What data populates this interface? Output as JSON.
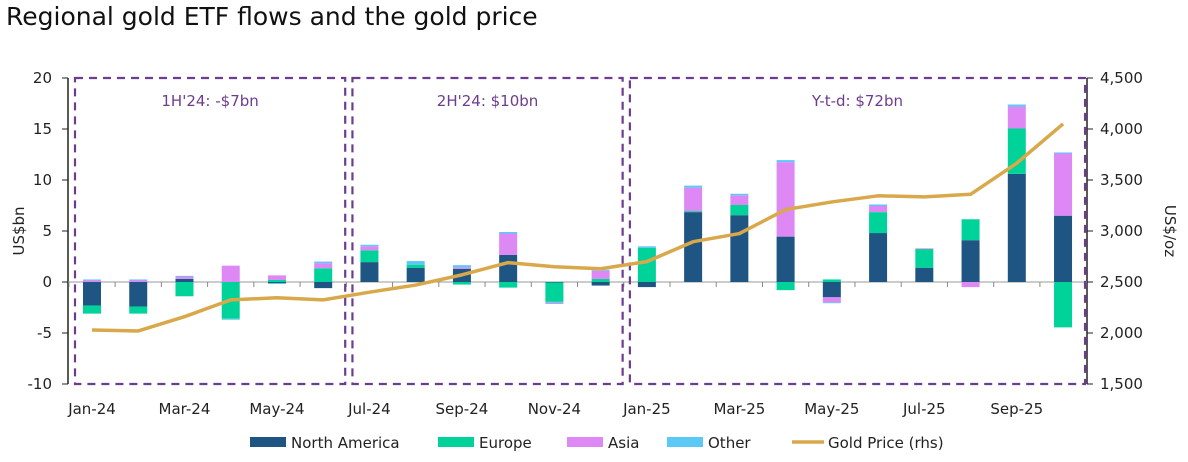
{
  "chart_data": {
    "type": "bar",
    "title": "Regional gold ETF flows and the gold price",
    "ylabel": "US$bn",
    "y2label": "US$/oz",
    "ylim": [
      -10,
      20
    ],
    "y2lim": [
      1500,
      4500
    ],
    "yticks": [
      -10,
      -5,
      0,
      5,
      10,
      15,
      20
    ],
    "y2ticks": [
      "1,500",
      "2,000",
      "2,500",
      "3,000",
      "3,500",
      "4,000",
      "4,500"
    ],
    "grid": false,
    "legend_position": "bottom",
    "categories": [
      "Jan-24",
      "Feb-24",
      "Mar-24",
      "Apr-24",
      "May-24",
      "Jun-24",
      "Jul-24",
      "Aug-24",
      "Sep-24",
      "Oct-24",
      "Nov-24",
      "Dec-24",
      "Jan-25",
      "Feb-25",
      "Mar-25",
      "Apr-25",
      "May-25",
      "Jun-25",
      "Jul-25",
      "Aug-25",
      "Sep-25",
      "Oct-25"
    ],
    "xticklabels": [
      "Jan-24",
      "",
      "Mar-24",
      "",
      "May-24",
      "",
      "Jul-24",
      "",
      "Sep-24",
      "",
      "Nov-24",
      "",
      "Jan-25",
      "",
      "Mar-25",
      "",
      "May-25",
      "",
      "Jul-25",
      "",
      "Sep-25",
      ""
    ],
    "series": [
      {
        "name": "North America",
        "color": "#1f5582",
        "values": [
          -2.3,
          -2.4,
          0.3,
          0,
          -0.1,
          -0.6,
          1.95,
          1.4,
          1.3,
          2.65,
          -0.05,
          -0.35,
          -0.5,
          6.85,
          6.55,
          4.45,
          -1.5,
          4.8,
          1.4,
          4.1,
          10.6,
          6.5
        ]
      },
      {
        "name": "Europe",
        "color": "#00d399",
        "values": [
          -0.8,
          -0.7,
          -1.4,
          -3.6,
          0.2,
          1.35,
          1.15,
          0.3,
          -0.25,
          -0.55,
          -1.9,
          0.3,
          3.35,
          0.1,
          1.0,
          -0.8,
          0.25,
          2.05,
          1.85,
          2.05,
          4.45,
          -4.45
        ]
      },
      {
        "name": "Asia",
        "color": "#dd88f5",
        "values": [
          0.2,
          0.2,
          0.25,
          1.6,
          0.45,
          0.5,
          0.4,
          0,
          0.15,
          2.1,
          -0.1,
          0.8,
          0,
          2.3,
          0.95,
          7.3,
          -0.5,
          0.6,
          0.05,
          -0.5,
          2.15,
          6.1
        ]
      },
      {
        "name": "Other",
        "color": "#5bc8f5",
        "values": [
          0.05,
          0.05,
          0.05,
          -0.1,
          -0.1,
          0.15,
          0.15,
          0.35,
          0.2,
          0.15,
          -0.1,
          0.1,
          0.15,
          0.2,
          0.15,
          0.2,
          -0.05,
          0.15,
          0,
          0,
          0.2,
          0.1
        ]
      }
    ],
    "line_series": {
      "name": "Gold Price (rhs)",
      "color": "#d8a84a",
      "axis": "right",
      "values": [
        2030,
        2020,
        2160,
        2325,
        2345,
        2325,
        2400,
        2470,
        2570,
        2690,
        2650,
        2630,
        2700,
        2895,
        2975,
        3210,
        3285,
        3345,
        3335,
        3360,
        3665,
        4050
      ]
    },
    "annotations": [
      {
        "text": "1H'24: -$7bn",
        "from": "Jan-24",
        "to": "Jun-24"
      },
      {
        "text": "2H'24: $10bn",
        "from": "Jul-24",
        "to": "Dec-24"
      },
      {
        "text": "Y-t-d: $72bn",
        "from": "Jan-25",
        "to": "Oct-25"
      }
    ],
    "annotation_color": "#6d3c8f"
  }
}
